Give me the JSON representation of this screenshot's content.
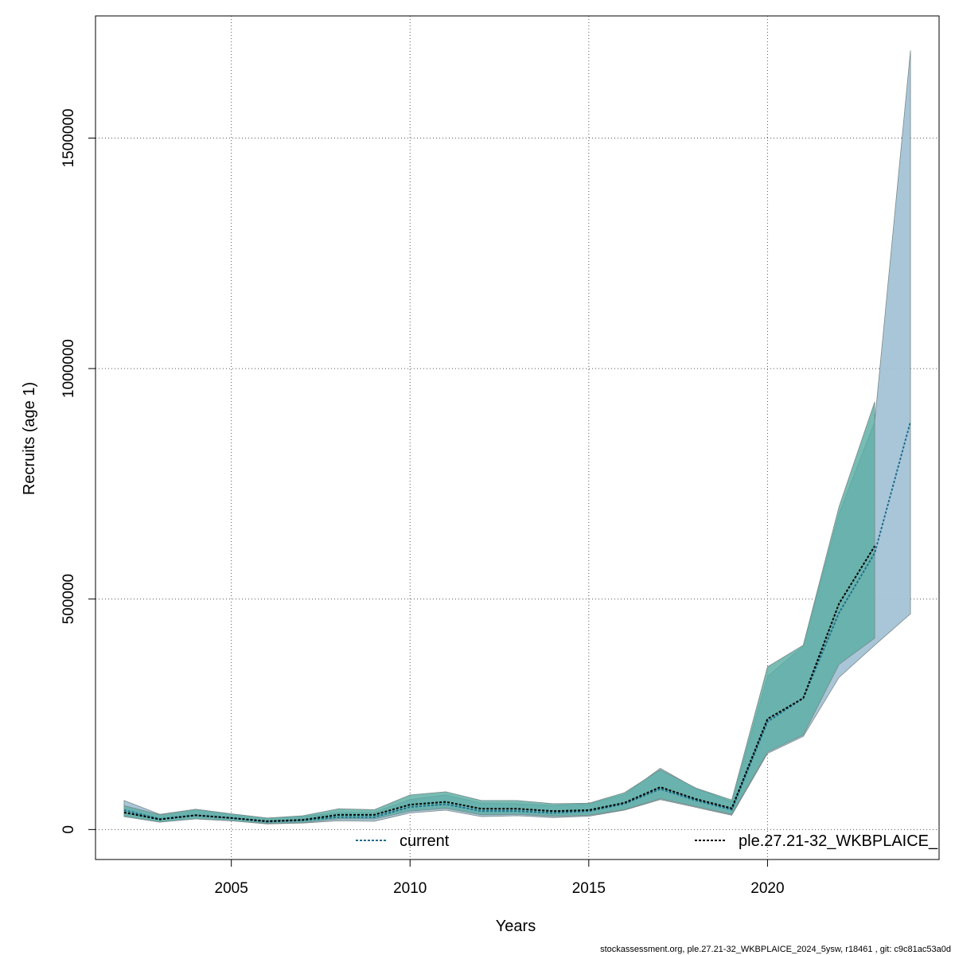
{
  "chart_data": {
    "type": "area",
    "xlabel": "Years",
    "ylabel": "Recruits (age 1)",
    "xlim": [
      2001.2,
      2024.8
    ],
    "ylim": [
      -65000,
      1765000
    ],
    "x_ticks": [
      2005,
      2010,
      2015,
      2020
    ],
    "x_tick_labels": [
      "2005",
      "2010",
      "2015",
      "2020"
    ],
    "y_ticks": [
      0,
      500000,
      1000000,
      1500000
    ],
    "y_tick_labels": [
      "0",
      "500000",
      "1000000",
      "1500000"
    ],
    "grid": true,
    "legend_position": "bottom",
    "series": [
      {
        "name": "current",
        "color": "#1f6e8c",
        "band_color": "#a4c3d6",
        "x": [
          2002,
          2003,
          2004,
          2005,
          2006,
          2007,
          2008,
          2009,
          2010,
          2011,
          2012,
          2013,
          2014,
          2015,
          2016,
          2017,
          2018,
          2019,
          2020,
          2021,
          2022,
          2023,
          2024
        ],
        "values": [
          42000,
          23000,
          31000,
          25000,
          17000,
          20000,
          27000,
          27000,
          49000,
          55000,
          40000,
          40000,
          36000,
          40000,
          56000,
          88000,
          63000,
          43000,
          234000,
          285000,
          470000,
          600000,
          885000
        ],
        "lower": [
          30000,
          17000,
          23000,
          19000,
          12000,
          14000,
          19000,
          18000,
          36000,
          42000,
          28000,
          30000,
          26000,
          29000,
          42000,
          65000,
          48000,
          31000,
          165000,
          202000,
          330000,
          400000,
          468000
        ],
        "upper": [
          63000,
          33000,
          44000,
          34000,
          25000,
          28000,
          37000,
          37000,
          65000,
          75000,
          57000,
          56000,
          52000,
          56000,
          76000,
          133000,
          89000,
          60000,
          332000,
          398000,
          685000,
          885000,
          1690000
        ]
      },
      {
        "name": "ple.27.21-32_WKBPLAICE_",
        "color": "#000000",
        "band_color": "#5aada3",
        "x": [
          2002,
          2003,
          2004,
          2005,
          2006,
          2007,
          2008,
          2009,
          2010,
          2011,
          2012,
          2013,
          2014,
          2015,
          2016,
          2017,
          2018,
          2019,
          2020,
          2021,
          2022,
          2023
        ],
        "values": [
          37000,
          22000,
          31000,
          25000,
          18000,
          21000,
          32000,
          32000,
          54000,
          60000,
          45000,
          45000,
          40000,
          42000,
          58000,
          92000,
          66000,
          46000,
          240000,
          285000,
          490000,
          615000
        ],
        "lower": [
          28000,
          16000,
          23000,
          19000,
          13000,
          15000,
          23000,
          23000,
          40000,
          46000,
          32000,
          33000,
          29000,
          31000,
          43000,
          67000,
          50000,
          33000,
          168000,
          205000,
          358000,
          415000
        ],
        "upper": [
          52000,
          32000,
          44000,
          34000,
          25000,
          30000,
          45000,
          43000,
          75000,
          82000,
          63000,
          63000,
          56000,
          57000,
          80000,
          130000,
          90000,
          64000,
          353000,
          400000,
          700000,
          928000
        ]
      }
    ]
  },
  "footer": "stockassessment.org, ple.27.21-32_WKBPLAICE_2024_5ysw, r18461 , git: c9c81ac53a0d"
}
